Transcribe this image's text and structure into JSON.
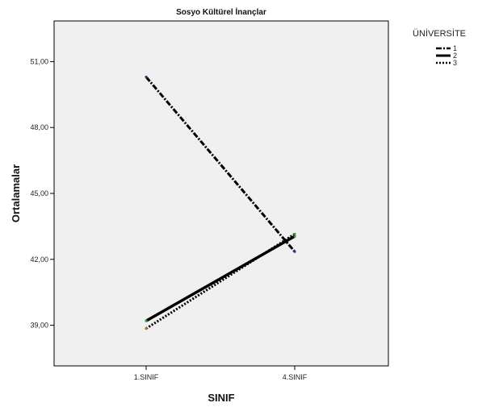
{
  "chart_data": {
    "type": "line",
    "title": "Sosyo Kültürel İnançlar",
    "xlabel": "SINIF",
    "ylabel": "Ortalamalar",
    "categories": [
      "1.SINIF",
      "4.SINIF"
    ],
    "yticks": [
      39,
      42,
      45,
      48,
      51
    ],
    "ytick_labels": [
      "39,00",
      "42,00",
      "45,00",
      "48,00",
      "51,00"
    ],
    "ylim": [
      37.15,
      52.85
    ],
    "grid": false,
    "legend": {
      "title": "ÜNİVERSİTE",
      "position": "top-right"
    },
    "series": [
      {
        "name": "1",
        "values": [
          50.3,
          42.35
        ],
        "style": "dash-dot",
        "point_colors": [
          "#2a3e8c",
          "#2a3e8c"
        ]
      },
      {
        "name": "2",
        "values": [
          39.2,
          43.05
        ],
        "style": "solid",
        "point_colors": [
          "#3a9a3a",
          "#3a9a3a"
        ]
      },
      {
        "name": "3",
        "values": [
          38.85,
          43.15
        ],
        "style": "dotted",
        "point_colors": [
          "#b07a30",
          "#3a9a3a"
        ]
      }
    ],
    "colors": {
      "plot_background": "#f0f0f0",
      "line": "#000000"
    }
  }
}
